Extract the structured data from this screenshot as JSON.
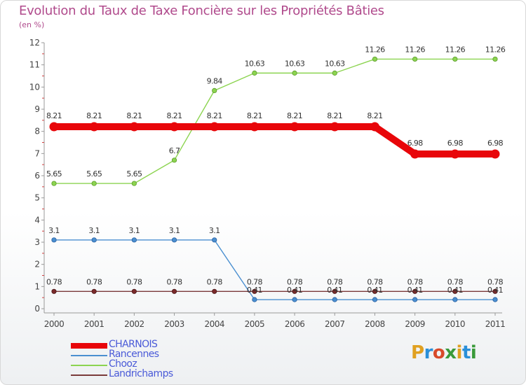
{
  "chart_data": {
    "type": "line",
    "title": "Evolution du Taux de Taxe Foncière sur les Propriétés Bâties",
    "subtitle": "(en %)",
    "xlabel": "",
    "ylabel": "",
    "categories": [
      "2000",
      "2001",
      "2002",
      "2003",
      "2004",
      "2005",
      "2006",
      "2007",
      "2008",
      "2009",
      "2010",
      "2011"
    ],
    "ylim": [
      0,
      12
    ],
    "yticks": [
      "0",
      "1",
      "2",
      "3",
      "4",
      "5",
      "6",
      "7",
      "8",
      "9",
      "10",
      "11",
      "12"
    ],
    "series": [
      {
        "name": "CHARNOIS",
        "color": "#e8060a",
        "values": [
          8.21,
          8.21,
          8.21,
          8.21,
          8.21,
          8.21,
          8.21,
          8.21,
          8.21,
          6.98,
          6.98,
          6.98
        ],
        "labels": [
          "8.21",
          "8.21",
          "8.21",
          "8.21",
          "8.21",
          "8.21",
          "8.21",
          "8.21",
          "8.21",
          "6.98",
          "6.98",
          "6.98"
        ]
      },
      {
        "name": "Rancennes",
        "color": "#4a8fd0",
        "values": [
          3.1,
          3.1,
          3.1,
          3.1,
          3.1,
          0.41,
          0.41,
          0.41,
          0.41,
          0.41,
          0.41,
          0.41
        ],
        "labels": [
          "3.1",
          "3.1",
          "3.1",
          "3.1",
          "3.1",
          "0.41",
          "0.41",
          "0.41",
          "0.41",
          "0.41",
          "0.41",
          "0.41"
        ]
      },
      {
        "name": "Chooz",
        "color": "#8cd450",
        "values": [
          5.65,
          5.65,
          5.65,
          6.7,
          9.84,
          10.63,
          10.63,
          10.63,
          11.26,
          11.26,
          11.26,
          11.26
        ],
        "labels": [
          "5.65",
          "5.65",
          "5.65",
          "6.7",
          "9.84",
          "10.63",
          "10.63",
          "10.63",
          "11.26",
          "11.26",
          "11.26",
          "11.26"
        ]
      },
      {
        "name": "Landrichamps",
        "color": "#7a3a3a",
        "values": [
          0.78,
          0.78,
          0.78,
          0.78,
          0.78,
          0.78,
          0.78,
          0.78,
          0.78,
          0.78,
          0.78,
          0.78
        ],
        "labels": [
          "0.78",
          "0.78",
          "0.78",
          "0.78",
          "0.78",
          "0.78",
          "0.78",
          "0.78",
          "0.78",
          "0.78",
          "0.78",
          "0.78"
        ]
      }
    ],
    "legend_position": "bottom-left",
    "grid": false
  },
  "logo": {
    "letters": [
      "P",
      "r",
      "o",
      "x",
      "i",
      "t",
      "i"
    ]
  }
}
